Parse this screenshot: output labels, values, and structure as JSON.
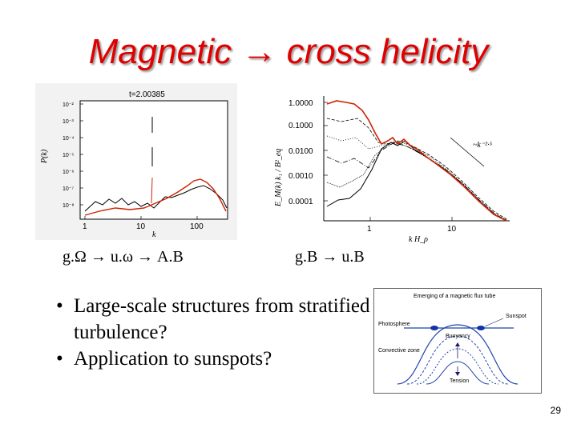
{
  "title": {
    "prefix": "Magnetic ",
    "arrow": "→",
    "suffix": " cross helicity"
  },
  "plot_left": {
    "time_label": "t=2.00385",
    "ylabel": "P(k)",
    "xlabel": "k",
    "xticks": [
      "1",
      "10",
      "100"
    ],
    "yticks": [
      "10⁻²",
      "10⁻³",
      "10⁻⁴",
      "10⁻⁵",
      "10⁻⁶",
      "10⁻⁷",
      "10⁻⁸"
    ],
    "colors": {
      "series_a": "#000000",
      "series_b": "#cc2200"
    }
  },
  "plot_right": {
    "ylabel": "E_M(k) k₁ / B²_eq",
    "xlabel": "k  H_ρ",
    "xticks": [
      "1",
      "10"
    ],
    "yticks": [
      "1.0000",
      "0.1000",
      "0.0100",
      "0.0010",
      "0.0001"
    ],
    "slope_label": "~k⁻²·⁵",
    "colors": {
      "final": "#cc2200",
      "earlier": "#000000"
    }
  },
  "captions": {
    "left": "g.Ω → u.ω → A.B",
    "right": "g.B → u.B"
  },
  "bullets": [
    "Large-scale structures from stratified turbulence?",
    "Application to sunspots?"
  ],
  "figure": {
    "title": "Emerging of a magnetic flux tube",
    "sunspot": "Sunspot",
    "photosphere": "Photosphere",
    "buoyancy": "Buoyancy",
    "convective_zone": "Convective zone",
    "tension": "Tension",
    "colors": {
      "line": "#2244aa",
      "label": "#1a1a66",
      "spot": "#1133aa"
    }
  },
  "slide_number": "29"
}
